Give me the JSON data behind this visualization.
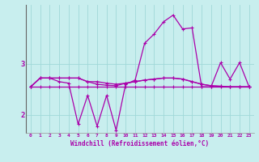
{
  "xlabel": "Windchill (Refroidissement éolien,°C)",
  "bg_color": "#c8eeee",
  "grid_color": "#a0d8d8",
  "line_color": "#aa00aa",
  "xlim": [
    -0.5,
    23.5
  ],
  "ylim": [
    1.65,
    4.15
  ],
  "yticks": [
    2,
    3
  ],
  "ytick_labels": [
    "2",
    "3"
  ],
  "xticks": [
    0,
    1,
    2,
    3,
    4,
    5,
    6,
    7,
    8,
    9,
    10,
    11,
    12,
    13,
    14,
    15,
    16,
    17,
    18,
    19,
    20,
    21,
    22,
    23
  ],
  "series1_x": [
    0,
    1,
    2,
    3,
    4,
    5,
    6,
    7,
    8,
    9,
    10,
    11,
    12,
    13,
    14,
    15,
    16,
    17,
    18,
    19,
    20,
    21,
    22,
    23
  ],
  "series1_y": [
    2.55,
    2.55,
    2.55,
    2.55,
    2.55,
    2.55,
    2.55,
    2.55,
    2.55,
    2.55,
    2.55,
    2.55,
    2.55,
    2.55,
    2.55,
    2.55,
    2.55,
    2.55,
    2.55,
    2.55,
    2.55,
    2.55,
    2.55,
    2.55
  ],
  "series2_x": [
    0,
    1,
    2,
    3,
    4,
    5,
    6,
    7,
    8,
    9,
    10,
    11,
    12,
    13,
    14,
    15,
    16,
    17,
    18,
    19,
    20,
    21,
    22,
    23
  ],
  "series2_y": [
    2.55,
    2.72,
    2.72,
    2.72,
    2.72,
    2.72,
    2.65,
    2.6,
    2.58,
    2.57,
    2.62,
    2.65,
    2.68,
    2.7,
    2.72,
    2.72,
    2.7,
    2.65,
    2.6,
    2.57,
    2.56,
    2.55,
    2.55,
    2.55
  ],
  "series3_x": [
    0,
    1,
    2,
    3,
    4,
    5,
    6,
    7,
    8,
    9,
    10,
    11,
    12,
    13,
    14,
    15,
    16,
    17,
    18,
    19,
    20,
    21,
    22,
    23
  ],
  "series3_y": [
    2.55,
    2.72,
    2.72,
    2.65,
    2.62,
    1.82,
    2.38,
    1.78,
    2.38,
    1.7,
    2.6,
    2.68,
    3.4,
    3.58,
    3.82,
    3.95,
    3.68,
    3.7,
    2.55,
    2.55,
    3.02,
    2.7,
    3.02,
    2.55
  ],
  "series4_x": [
    0,
    1,
    2,
    3,
    4,
    5,
    6,
    7,
    8,
    9,
    10,
    11,
    12,
    13,
    14,
    15,
    16,
    17,
    18,
    19,
    20,
    21,
    22,
    23
  ],
  "series4_y": [
    2.55,
    2.72,
    2.72,
    2.72,
    2.72,
    2.72,
    2.65,
    2.65,
    2.62,
    2.6,
    2.62,
    2.65,
    2.68,
    2.7,
    2.72,
    2.72,
    2.7,
    2.65,
    2.6,
    2.57,
    2.56,
    2.55,
    2.55,
    2.55
  ]
}
